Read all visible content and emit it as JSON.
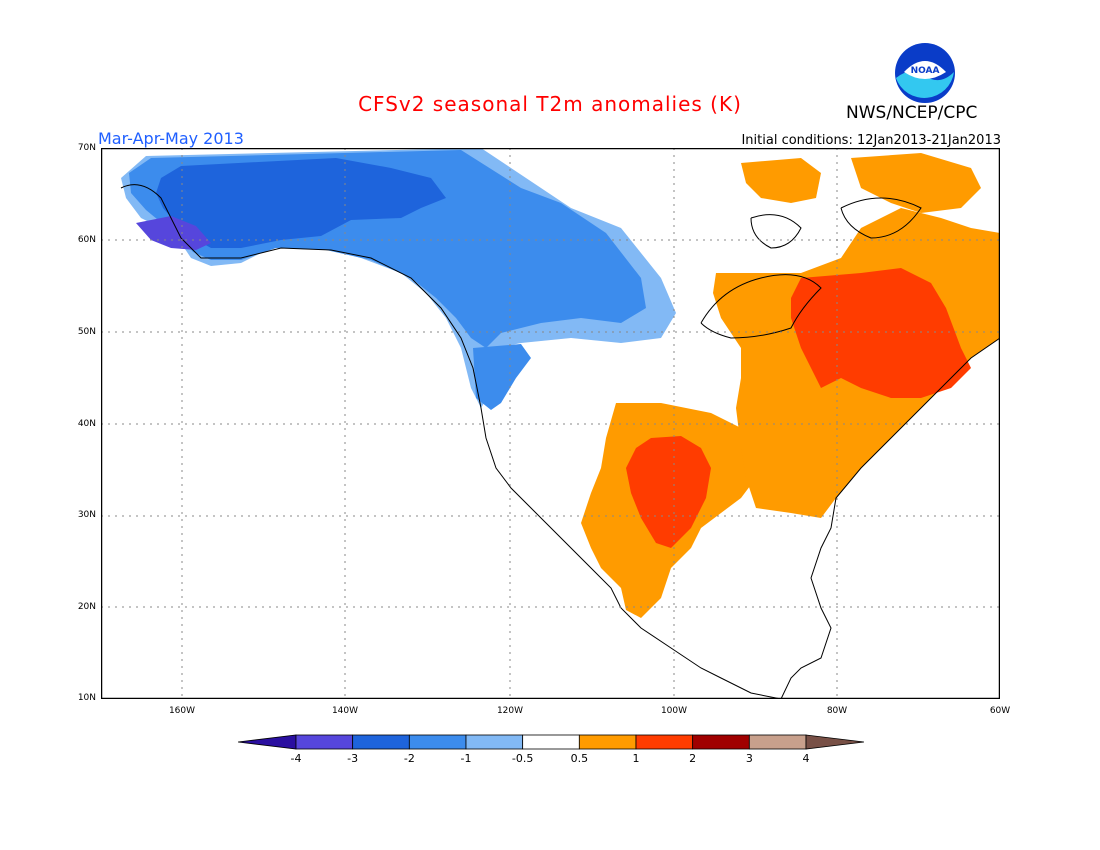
{
  "header": {
    "title": "CFSv2 seasonal T2m anomalies (K)",
    "agency": "NWS/NCEP/CPC",
    "season": "Mar-Apr-May 2013",
    "initial_conditions": "Initial conditions: 12Jan2013-21Jan2013",
    "logo_text": "NOAA"
  },
  "map": {
    "lat_labels": [
      "70N",
      "60N",
      "50N",
      "40N",
      "30N",
      "20N",
      "10N"
    ],
    "lon_labels": [
      "160W",
      "140W",
      "120W",
      "100W",
      "80W",
      "60W"
    ]
  },
  "legend": {
    "labels": [
      "-4",
      "-3",
      "-2",
      "-1",
      "-0.5",
      "0.5",
      "1",
      "2",
      "3",
      "4"
    ],
    "colors": [
      "#2a0fa0",
      "#5646dc",
      "#1e64dc",
      "#3c8ced",
      "#82b9f5",
      "#ffffff",
      "#ff9b00",
      "#ff3c00",
      "#a00000",
      "#c8a08c",
      "#785046"
    ]
  },
  "colors": {
    "ocean": "#ffffff",
    "coastline": "#000000",
    "title": "#ff0000",
    "season": "#1f5fff",
    "strong_cold": "#5646dc",
    "cold2": "#1e64dc",
    "cold1": "#3c8ced",
    "cold05": "#82b9f5",
    "warm05": "#ff9b00",
    "warm1": "#ff3c00"
  }
}
